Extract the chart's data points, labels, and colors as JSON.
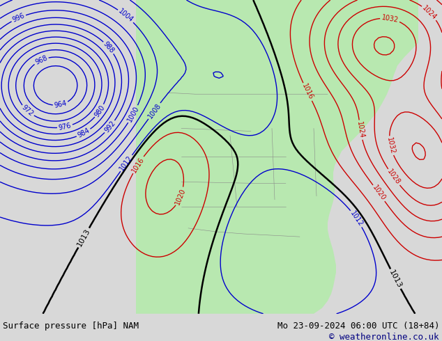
{
  "title_left": "Surface pressure [hPa] NAM",
  "title_right": "Mo 23-09-2024 06:00 UTC (18+84)",
  "copyright": "© weatheronline.co.uk",
  "bg_color": "#d8d8d8",
  "land_color": "#b8e8b0",
  "water_color": "#d8d8d8",
  "contour_blue_color": "#0000cc",
  "contour_red_color": "#cc0000",
  "contour_black_color": "#000000",
  "label_fontsize": 9,
  "footer_fontsize": 9,
  "copyright_fontsize": 9,
  "figsize": [
    6.34,
    4.9
  ],
  "dpi": 100
}
